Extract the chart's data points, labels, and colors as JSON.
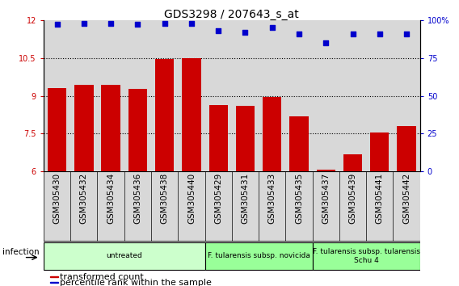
{
  "title": "GDS3298 / 207643_s_at",
  "samples": [
    "GSM305430",
    "GSM305432",
    "GSM305434",
    "GSM305436",
    "GSM305438",
    "GSM305440",
    "GSM305429",
    "GSM305431",
    "GSM305433",
    "GSM305435",
    "GSM305437",
    "GSM305439",
    "GSM305441",
    "GSM305442"
  ],
  "transformed_count": [
    9.3,
    9.45,
    9.42,
    9.28,
    10.47,
    10.5,
    8.65,
    8.6,
    8.95,
    8.2,
    6.08,
    6.68,
    7.55,
    7.8
  ],
  "percentile_rank": [
    97,
    98,
    98,
    97,
    98,
    98,
    93,
    92,
    95,
    91,
    85,
    91,
    91,
    91
  ],
  "bar_color": "#cc0000",
  "dot_color": "#0000cc",
  "ymin": 6,
  "ymax": 12,
  "ylim_left": [
    6,
    12
  ],
  "ylim_right": [
    0,
    100
  ],
  "yticks_left": [
    6,
    7.5,
    9,
    10.5,
    12
  ],
  "yticks_right": [
    0,
    25,
    50,
    75,
    100
  ],
  "grid_lines": [
    7.5,
    9.0,
    10.5
  ],
  "groups": [
    {
      "label": "untreated",
      "start": 0,
      "end": 5,
      "color": "#ccffcc"
    },
    {
      "label": "F. tularensis subsp. novicida",
      "start": 6,
      "end": 9,
      "color": "#99ff99"
    },
    {
      "label": "F. tularensis subsp. tularensis\nSchu 4",
      "start": 10,
      "end": 13,
      "color": "#99ff99"
    }
  ],
  "infection_label": "infection",
  "legend_items": [
    {
      "color": "#cc0000",
      "label": "transformed count"
    },
    {
      "color": "#0000cc",
      "label": "percentile rank within the sample"
    }
  ],
  "title_fontsize": 10,
  "tick_fontsize": 7,
  "label_fontsize": 7.5,
  "group_fontsize": 6.5,
  "legend_fontsize": 8,
  "col_bg_color": "#d8d8d8"
}
